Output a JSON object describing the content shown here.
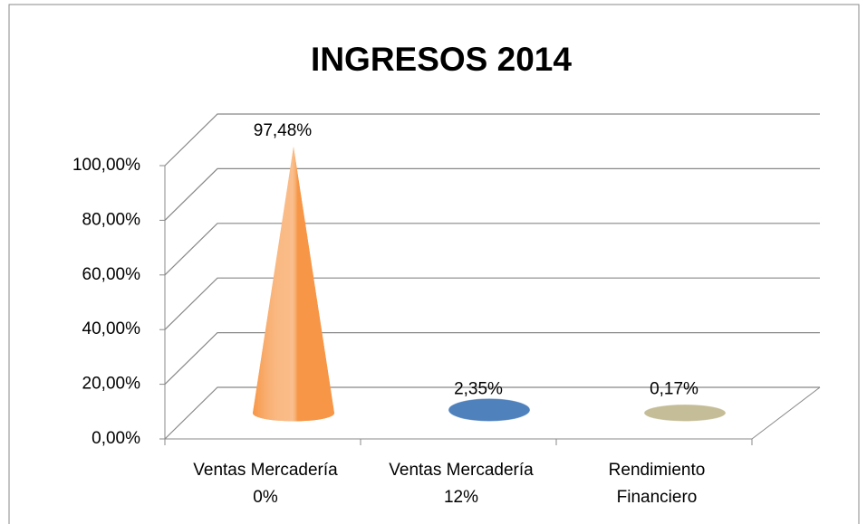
{
  "chart_data": {
    "type": "cone",
    "title": "INGRESOS 2014",
    "categories": [
      [
        "Ventas Mercadería",
        "0%"
      ],
      [
        "Ventas Mercadería",
        "12%"
      ],
      [
        "Rendimiento",
        "Financiero"
      ]
    ],
    "values": [
      97.48,
      2.35,
      0.17
    ],
    "value_labels": [
      "97,48%",
      "2,35%",
      "0,17%"
    ],
    "colors": [
      "#f79646",
      "#4f81bd",
      "#c4bd97"
    ],
    "ylim": [
      0,
      100
    ],
    "yticks": [
      {
        "value": 0,
        "label": "0,00%"
      },
      {
        "value": 20,
        "label": "20,00%"
      },
      {
        "value": 40,
        "label": "40,00%"
      },
      {
        "value": 60,
        "label": "60,00%"
      },
      {
        "value": 80,
        "label": "80,00%"
      },
      {
        "value": 100,
        "label": "100,00%"
      }
    ],
    "grid": true
  }
}
